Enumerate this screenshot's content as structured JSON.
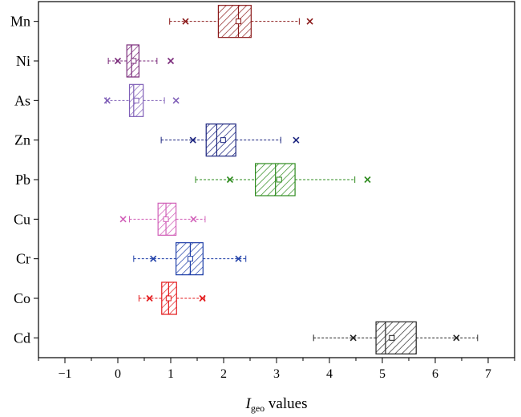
{
  "chart_data": {
    "type": "box",
    "title": "",
    "xlabel": {
      "main": "I",
      "sub": "geo",
      "rest": " values"
    },
    "ylabel": "",
    "xlim": [
      -1.5,
      7.5
    ],
    "xticks": [
      -1,
      0,
      1,
      2,
      3,
      4,
      5,
      6,
      7
    ],
    "xtick_labels": [
      "−1",
      "0",
      "1",
      "2",
      "3",
      "4",
      "5",
      "6",
      "7"
    ],
    "grid": false,
    "legend": "none",
    "categories": [
      "Mn",
      "Ni",
      "As",
      "Zn",
      "Pb",
      "Cu",
      "Cr",
      "Co",
      "Cd"
    ],
    "boxes": [
      {
        "category": "Mn",
        "color": "#8b1a1a",
        "whisker_low": 0.98,
        "q1": 1.9,
        "median": 2.28,
        "q3": 2.52,
        "whisker_high": 3.43,
        "mean": 2.28,
        "outlier_low": 1.28,
        "outlier_high": 3.63
      },
      {
        "category": "Ni",
        "color": "#7a2a7a",
        "whisker_low": -0.18,
        "q1": 0.17,
        "median": 0.26,
        "q3": 0.4,
        "whisker_high": 0.74,
        "mean": 0.3,
        "outlier_low": 0.0,
        "outlier_high": 1.0
      },
      {
        "category": "As",
        "color": "#8060b8",
        "whisker_low": -0.22,
        "q1": 0.22,
        "median": 0.3,
        "q3": 0.48,
        "whisker_high": 0.88,
        "mean": 0.35,
        "outlier_low": -0.2,
        "outlier_high": 1.1
      },
      {
        "category": "Zn",
        "color": "#1a237e",
        "whisker_low": 0.82,
        "q1": 1.67,
        "median": 1.87,
        "q3": 2.23,
        "whisker_high": 3.08,
        "mean": 1.99,
        "outlier_low": 1.42,
        "outlier_high": 3.37
      },
      {
        "category": "Pb",
        "color": "#2e8b1e",
        "whisker_low": 1.47,
        "q1": 2.6,
        "median": 2.98,
        "q3": 3.35,
        "whisker_high": 4.48,
        "mean": 3.05,
        "outlier_low": 2.12,
        "outlier_high": 4.72
      },
      {
        "category": "Cu",
        "color": "#d15fb8",
        "whisker_low": 0.22,
        "q1": 0.76,
        "median": 0.91,
        "q3": 1.1,
        "whisker_high": 1.65,
        "mean": 0.91,
        "outlier_low": 0.1,
        "outlier_high": 1.43
      },
      {
        "category": "Cr",
        "color": "#1f3fa8",
        "whisker_low": 0.3,
        "q1": 1.1,
        "median": 1.37,
        "q3": 1.61,
        "whisker_high": 2.42,
        "mean": 1.37,
        "outlier_low": 0.67,
        "outlier_high": 2.28
      },
      {
        "category": "Co",
        "color": "#e31a1c",
        "whisker_low": 0.4,
        "q1": 0.83,
        "median": 0.96,
        "q3": 1.11,
        "whisker_high": 1.64,
        "mean": 0.96,
        "outlier_low": 0.6,
        "outlier_high": 1.6
      },
      {
        "category": "Cd",
        "color": "#222222",
        "whisker_low": 3.7,
        "q1": 4.88,
        "median": 5.06,
        "q3": 5.64,
        "whisker_high": 6.8,
        "mean": 5.18,
        "outlier_low": 4.45,
        "outlier_high": 6.4
      }
    ]
  }
}
